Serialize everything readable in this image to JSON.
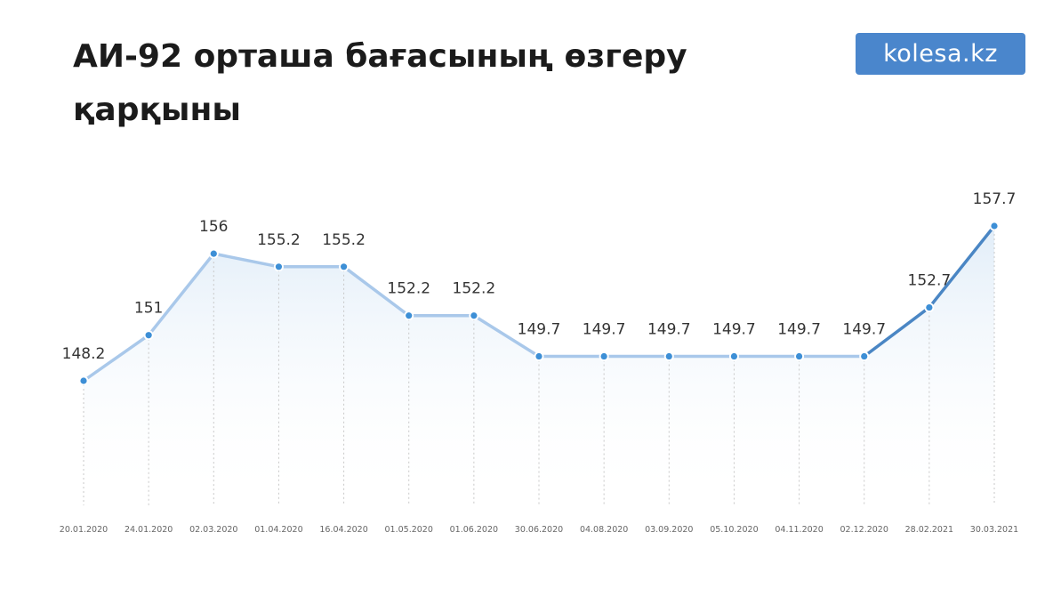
{
  "header": {
    "title": "АИ-92 орташа бағасының өзгеру қарқыны",
    "logo_text": "kolesa.kz"
  },
  "colors": {
    "line_light": "#a9c8ea",
    "line_dark": "#4a86c4",
    "point": "#3d8fd6",
    "area_top": "#dceaf7",
    "gridline": "#c8c8c8",
    "logo_bg": "#4a86cc"
  },
  "chart_data": {
    "type": "area",
    "title": "АИ-92 орташа бағасының өзгеру қарқыны",
    "xlabel": "",
    "ylabel": "",
    "grid": "vertical dotted drop-lines",
    "legend": "none",
    "categories": [
      "20.01.2020",
      "24.01.2020",
      "02.03.2020",
      "01.04.2020",
      "16.04.2020",
      "01.05.2020",
      "01.06.2020",
      "30.06.2020",
      "04.08.2020",
      "03.09.2020",
      "05.10.2020",
      "04.11.2020",
      "02.12.2020",
      "28.02.2021",
      "30.03.2021"
    ],
    "values": [
      148.2,
      151,
      156,
      155.2,
      155.2,
      152.2,
      152.2,
      149.7,
      149.7,
      149.7,
      149.7,
      149.7,
      149.7,
      152.7,
      157.7
    ],
    "value_labels": [
      "148.2",
      "151",
      "156",
      "155.2",
      "155.2",
      "152.2",
      "152.2",
      "149.7",
      "149.7",
      "149.7",
      "149.7",
      "149.7",
      "149.7",
      "152.7",
      "157.7"
    ],
    "highlight_from_index": 12
  }
}
